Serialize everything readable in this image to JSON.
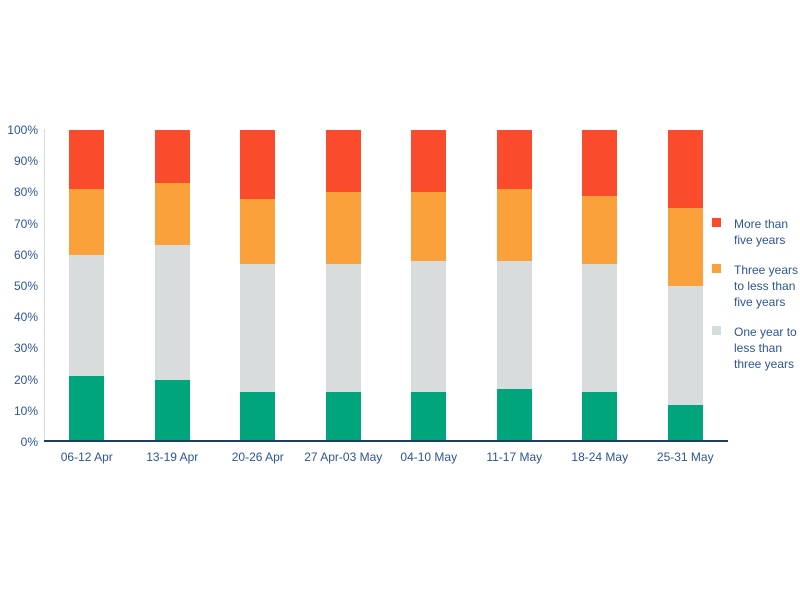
{
  "chart_data": {
    "type": "bar",
    "stacked": true,
    "units": "percent",
    "categories": [
      "06-12 Apr",
      "13-19 Apr",
      "20-26 Apr",
      "27 Apr-03 May",
      "04-10 May",
      "11-17 May",
      "18-24 May",
      "25-31 May"
    ],
    "series": [
      {
        "name": "",
        "color": "#00a57c",
        "in_legend": false,
        "values": [
          21,
          20,
          16,
          16,
          16,
          17,
          16,
          12
        ]
      },
      {
        "name": "One year to less than three years",
        "color": "#d8dcdd",
        "in_legend": true,
        "values": [
          39,
          43,
          41,
          41,
          42,
          41,
          41,
          38
        ]
      },
      {
        "name": "Three years to less than five years",
        "color": "#faa13c",
        "in_legend": true,
        "values": [
          21,
          20,
          21,
          23,
          22,
          23,
          22,
          25
        ]
      },
      {
        "name": "More than five years",
        "color": "#fa4b2d",
        "in_legend": true,
        "values": [
          19,
          17,
          22,
          20,
          20,
          19,
          21,
          25
        ]
      }
    ],
    "title": "",
    "xlabel": "",
    "ylabel": "",
    "ylim": [
      0,
      100
    ],
    "y_ticks": [
      "0%",
      "10%",
      "20%",
      "30%",
      "40%",
      "50%",
      "60%",
      "70%",
      "80%",
      "90%",
      "100%"
    ],
    "grid": false,
    "legend_position": "right",
    "legend": [
      {
        "label": "More than five years",
        "color": "#fa4b2d"
      },
      {
        "label": "Three years to less than five years",
        "color": "#faa13c"
      },
      {
        "label": "One year to less than three years",
        "color": "#d8dcdd"
      }
    ]
  },
  "colors": {
    "background": "#ffffff",
    "axis_line": "#d6d8d9",
    "baseline": "#1f3c61",
    "label_text": "#2e5594"
  }
}
